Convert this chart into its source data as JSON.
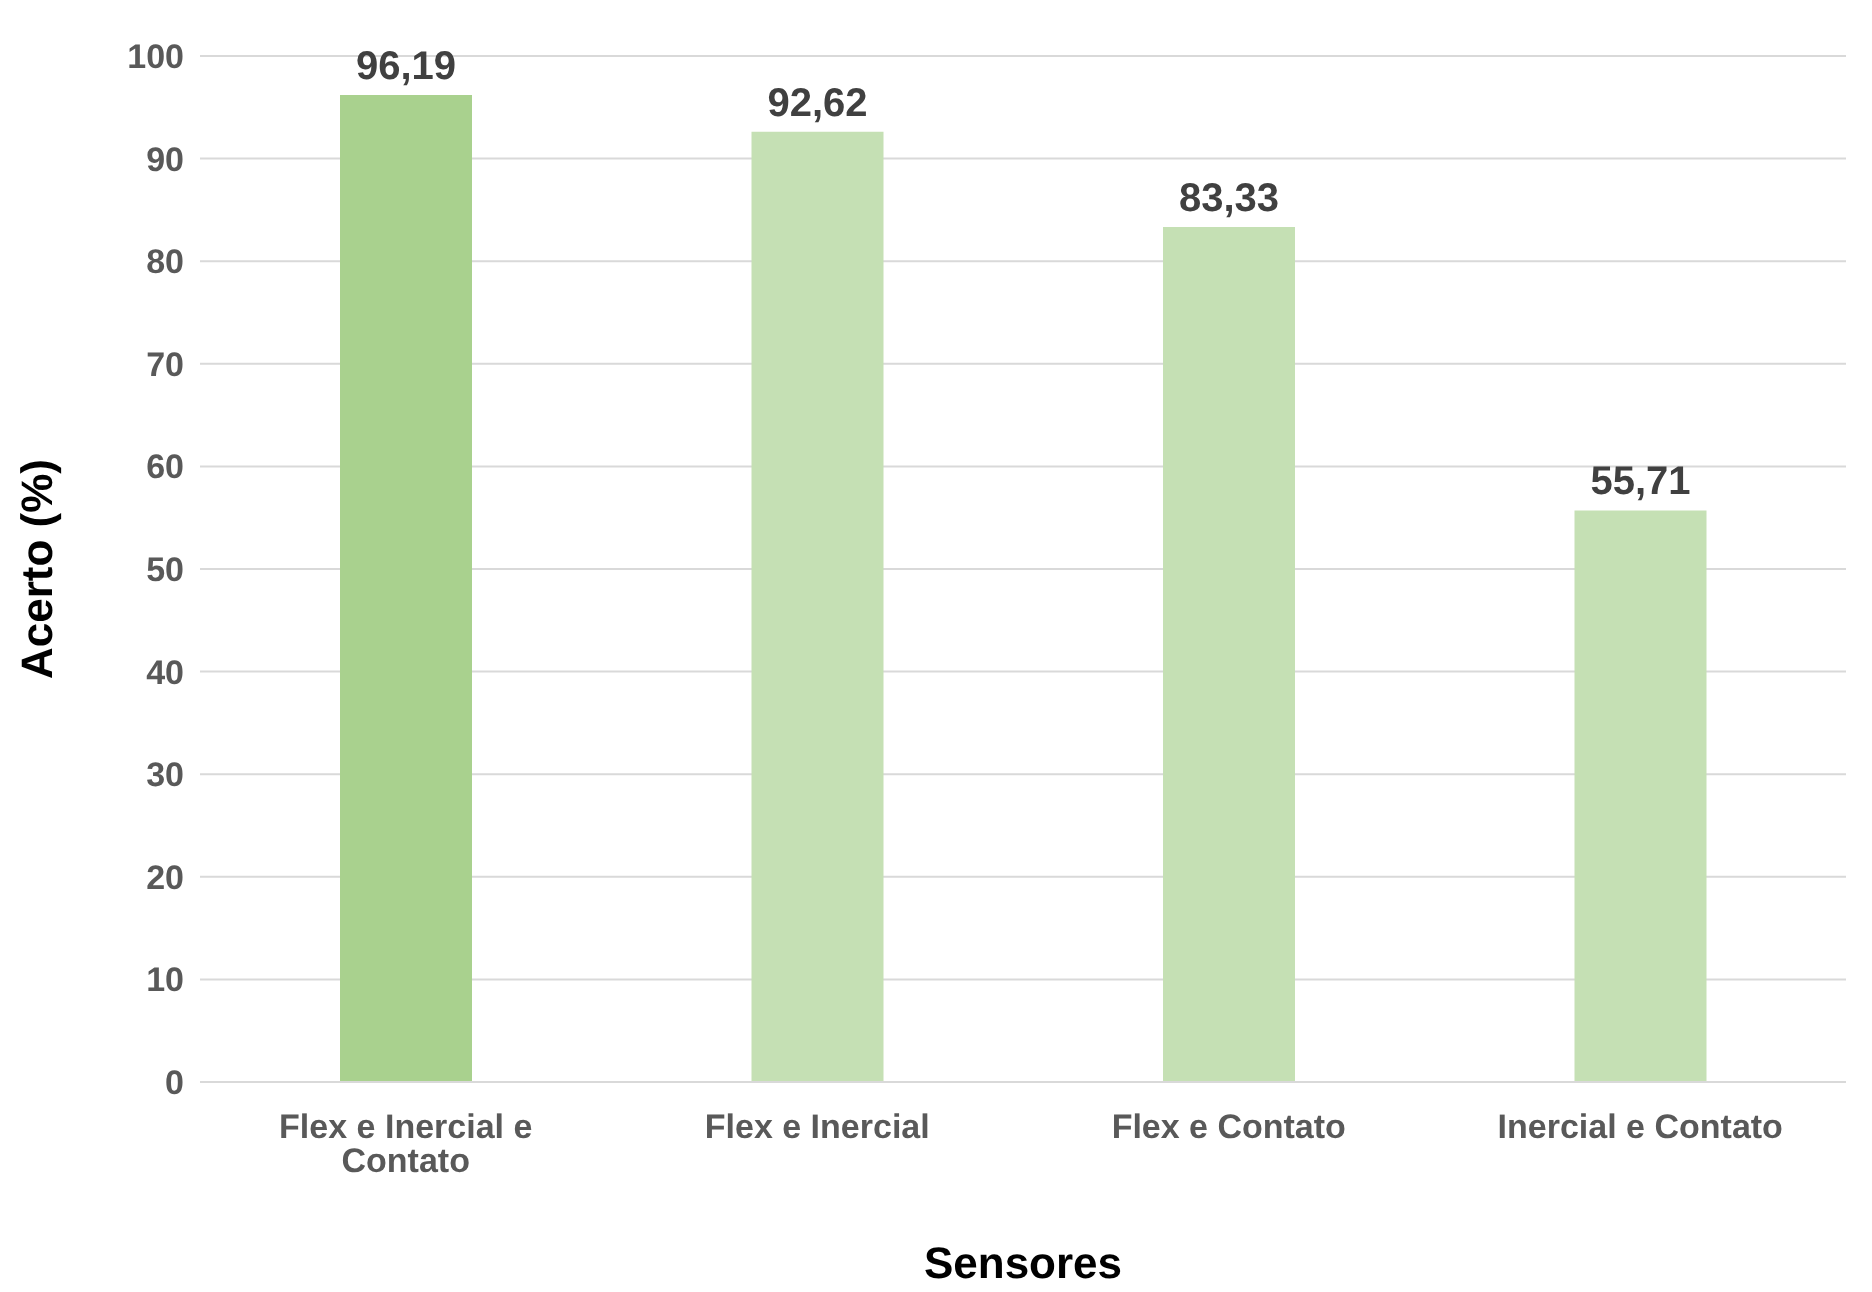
{
  "chart_data": {
    "type": "bar",
    "xlabel": "Sensores",
    "ylabel": "Acerto (%)",
    "categories": [
      "Flex e Inercial e Contato",
      "Flex e Inercial",
      "Flex e Contato",
      "Inercial e Contato"
    ],
    "values": [
      96.19,
      92.62,
      83.33,
      55.71
    ],
    "colors": [
      "#a9d18e",
      "#c5e0b4",
      "#c5e0b4",
      "#c5e0b4"
    ],
    "value_labels": [
      "96,19",
      "92,62",
      "83,33",
      "55,71"
    ],
    "ylim": [
      0,
      100
    ],
    "yticks": [
      0,
      10,
      20,
      30,
      40,
      50,
      60,
      70,
      80,
      90,
      100
    ],
    "grid": "y"
  }
}
